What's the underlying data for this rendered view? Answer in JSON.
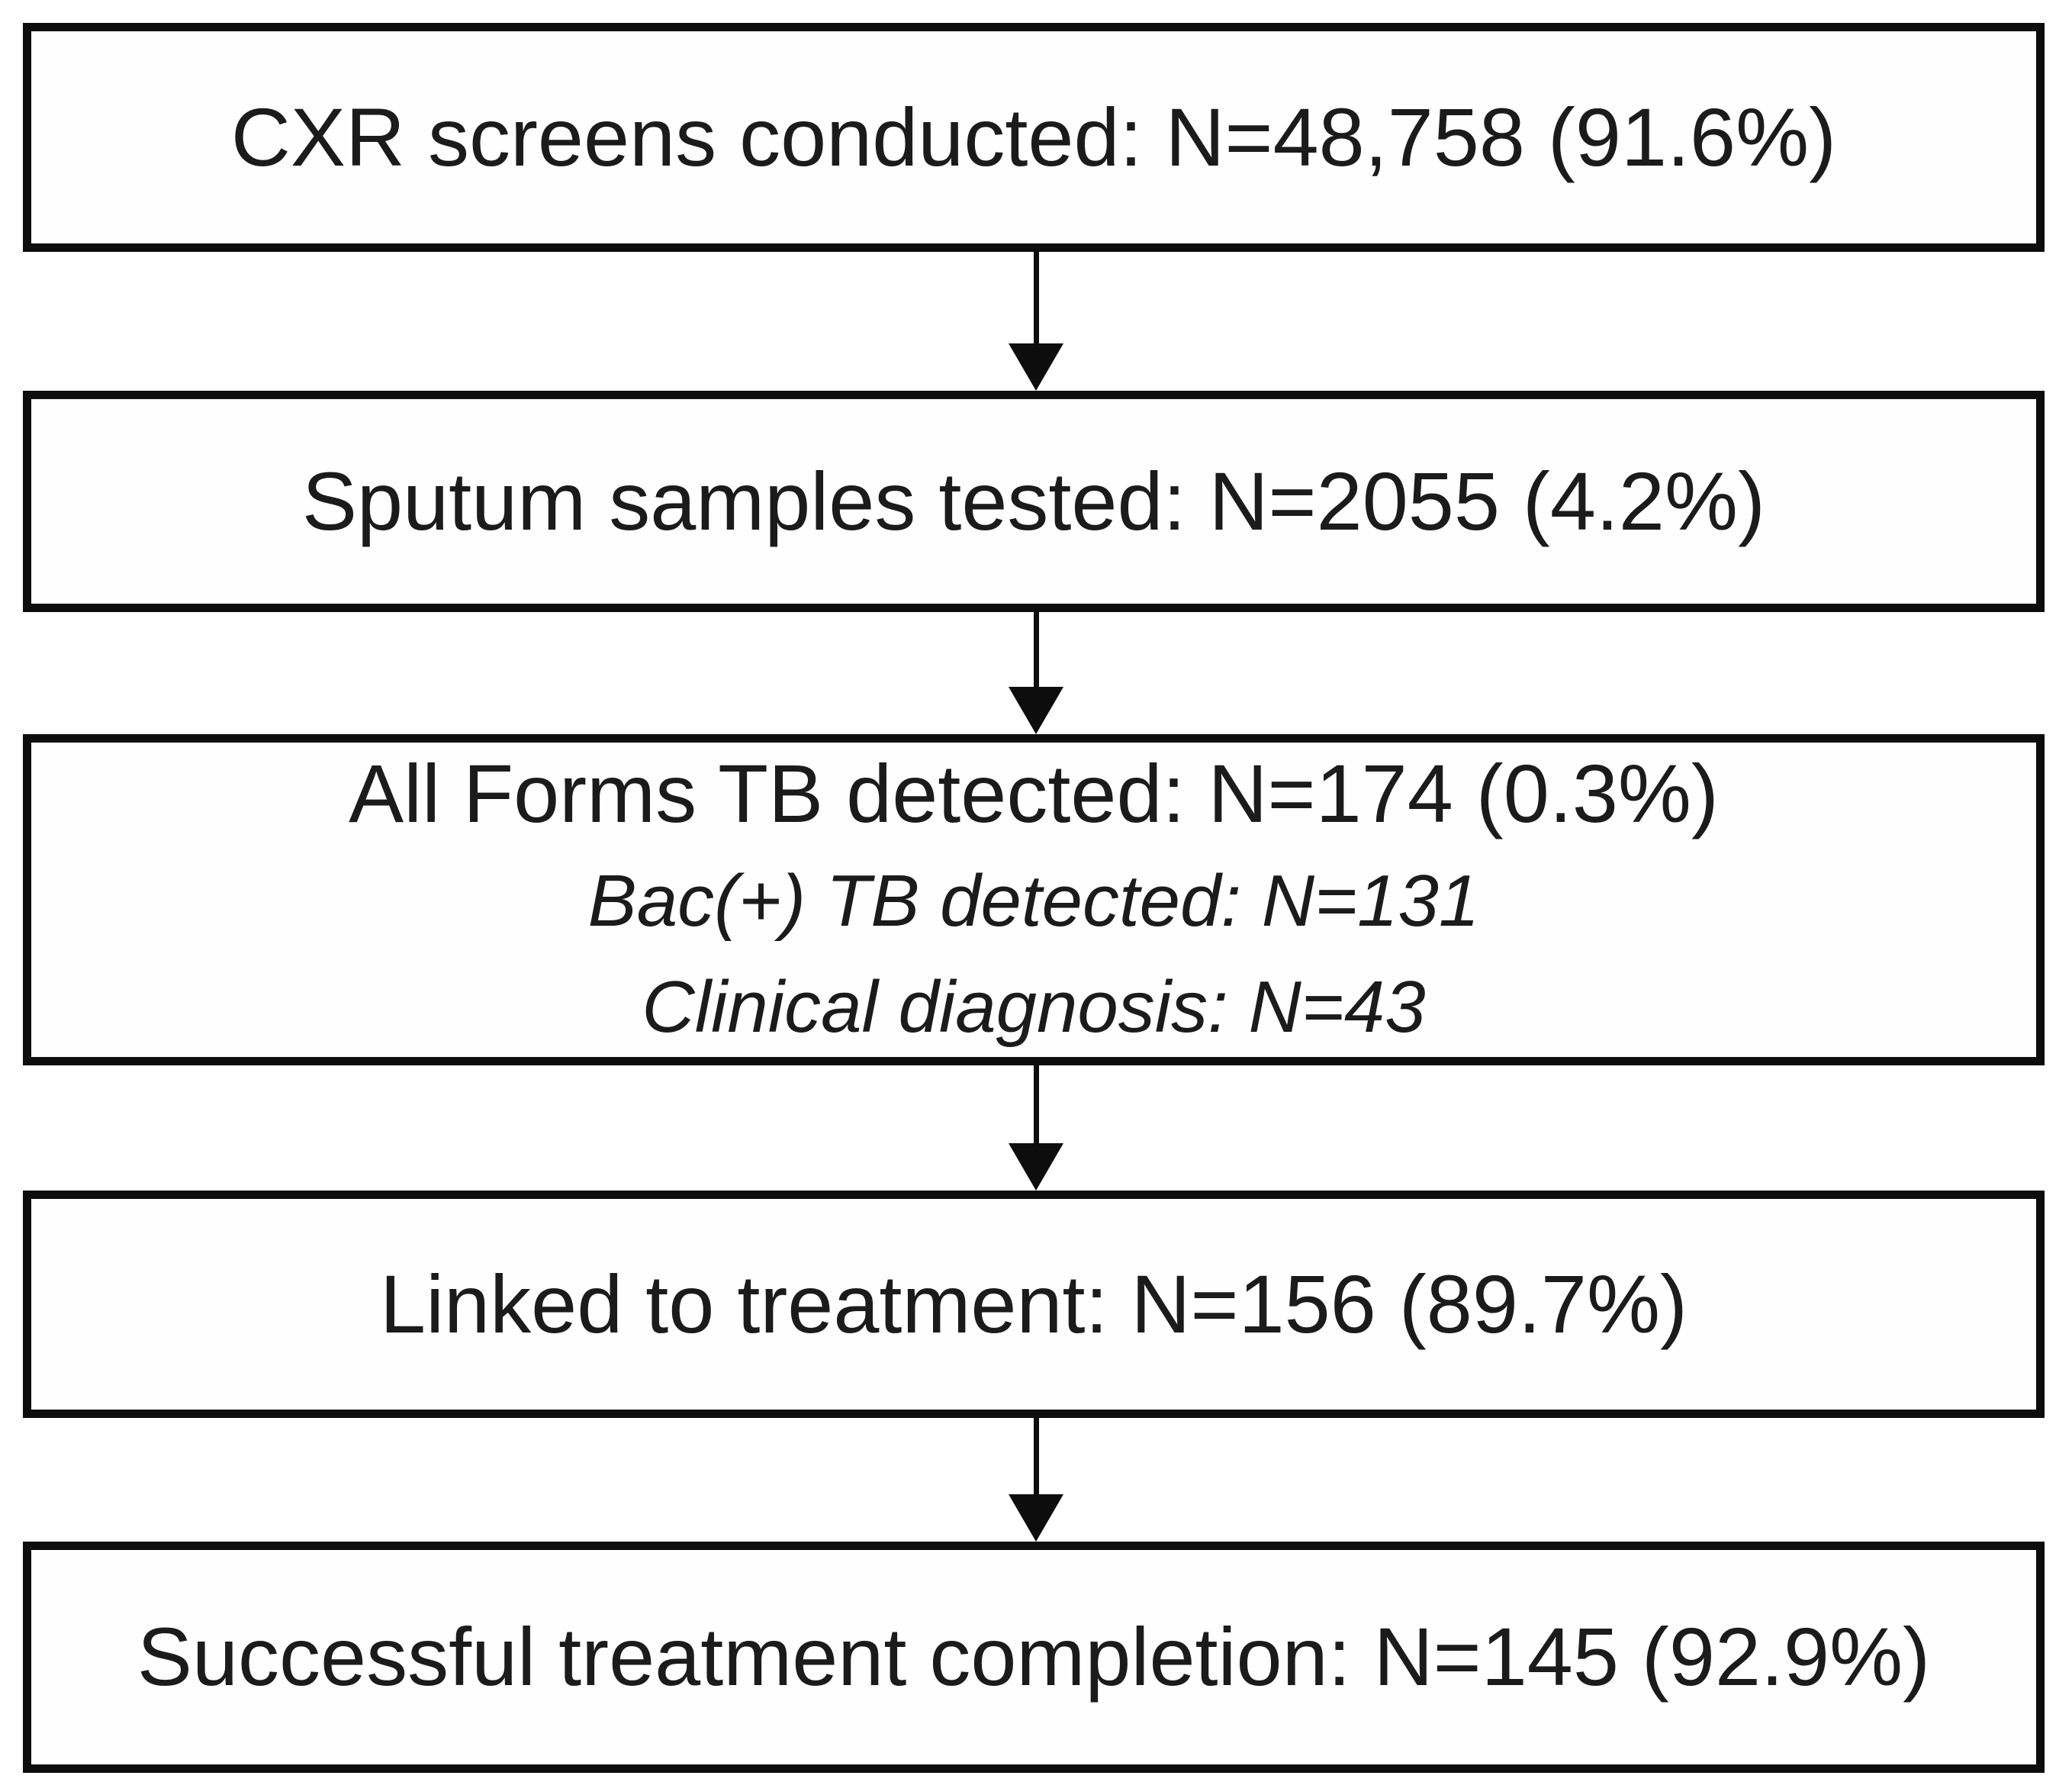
{
  "figure": {
    "type": "flowchart",
    "direction": "top-down",
    "colors": {
      "background": "#ffffff",
      "box_fill": "#fefefe",
      "border": "#0d0d0d",
      "text": "#1b1b1b"
    },
    "nodes": [
      {
        "id": "cxr-screens",
        "lines": [
          {
            "text": "CXR screens conducted: N=48,758 (91.6%)",
            "style": "regular"
          }
        ]
      },
      {
        "id": "sputum-tested",
        "lines": [
          {
            "text": "Sputum samples tested: N=2055 (4.2%)",
            "style": "regular"
          }
        ]
      },
      {
        "id": "tb-detected",
        "lines": [
          {
            "text": "All Forms TB detected: N=174 (0.3%)",
            "style": "regular"
          },
          {
            "text": "Bac(+) TB detected: N=131",
            "style": "italic"
          },
          {
            "text": "Clinical diagnosis: N=43",
            "style": "italic"
          }
        ]
      },
      {
        "id": "linked-treatment",
        "lines": [
          {
            "text": "Linked to treatment: N=156 (89.7%)",
            "style": "regular"
          }
        ]
      },
      {
        "id": "treatment-completion",
        "lines": [
          {
            "text": "Successful treatment completion: N=145 (92.9%)",
            "style": "regular"
          }
        ]
      }
    ],
    "edges": [
      {
        "from": "cxr-screens",
        "to": "sputum-tested",
        "style": "solid-arrow-down"
      },
      {
        "from": "sputum-tested",
        "to": "tb-detected",
        "style": "solid-arrow-down"
      },
      {
        "from": "tb-detected",
        "to": "linked-treatment",
        "style": "solid-arrow-down"
      },
      {
        "from": "linked-treatment",
        "to": "treatment-completion",
        "style": "solid-arrow-down"
      }
    ]
  }
}
